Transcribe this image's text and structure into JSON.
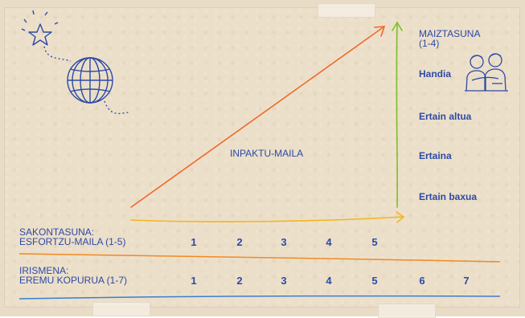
{
  "frequency": {
    "title": "MAIZTASUNA",
    "range": "(1-4)",
    "levels": [
      "Handia",
      "Ertain altua",
      "Ertaina",
      "Ertain baxua"
    ]
  },
  "impact_label": "INPAKTU-MAILA",
  "depth": {
    "title": "SAKONTASUNA:",
    "subtitle": "ESFORTZU-MAILA (1-5)",
    "values": [
      "1",
      "2",
      "3",
      "4",
      "5"
    ]
  },
  "reach": {
    "title": "IRISMENA:",
    "subtitle": "EREMU KOPURUA (1-7)",
    "values": [
      "1",
      "2",
      "3",
      "4",
      "5",
      "6",
      "7"
    ]
  },
  "colors": {
    "text": "#2c4aa6",
    "impact_arrow": "#ee6a2c",
    "frequency_arrow": "#7fbf2a",
    "depth_arrow": "#f4b41c",
    "depth_line": "#f08a24",
    "reach_line": "#3a7fd0",
    "paper": "#ecdfc9"
  },
  "icons": [
    "star-icon",
    "globe-icon",
    "hugging-people-icon"
  ]
}
